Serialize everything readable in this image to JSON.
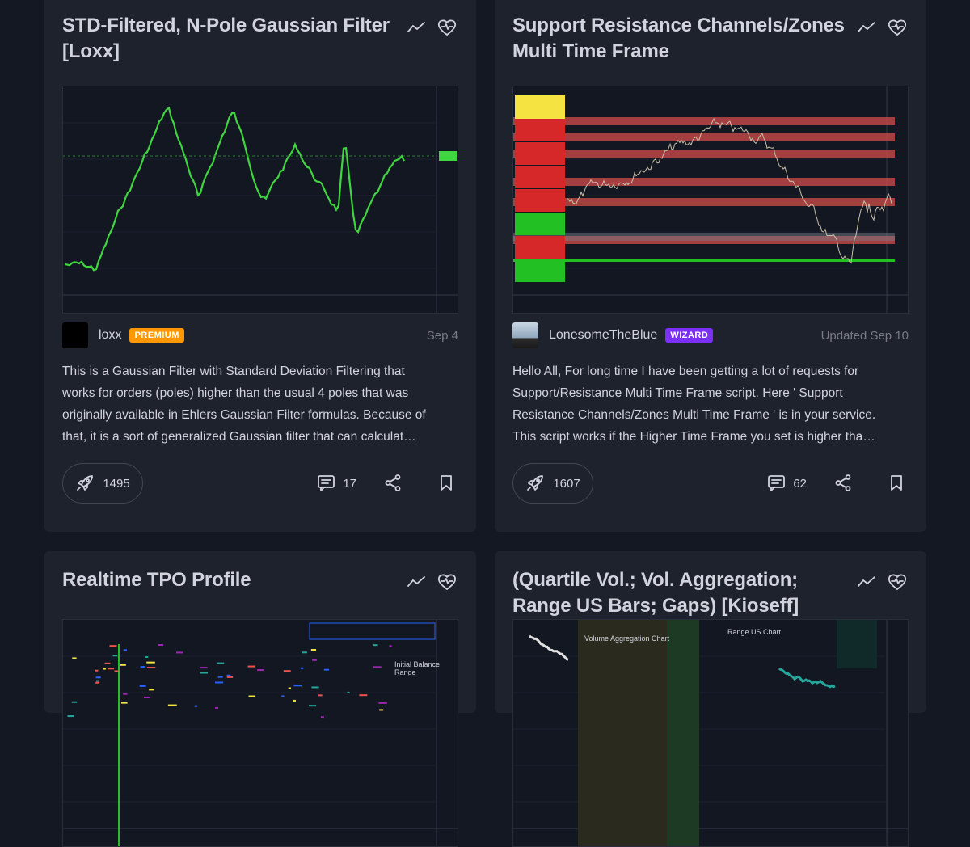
{
  "cards": [
    {
      "title": "STD-Filtered, N-Pole Gaussian Filter [Loxx]",
      "author": "loxx",
      "badge": "PREMIUM",
      "date": "Sep 4",
      "description": [
        "This is a Gaussian Filter with Standard Deviation Filtering that",
        "works for orders (poles) higher than the usual 4 poles that was",
        "originally available in Ehlers Gaussian Filter formulas. Because of",
        "that, it is a sort of generalized Gaussian filter that can calculat…"
      ],
      "boosts": 1495,
      "comments": 17
    },
    {
      "title": "Support Resistance Channels/Zones Multi Time Frame",
      "author": "LonesomeTheBlue",
      "badge": "WIZARD",
      "date": "Updated Sep 10",
      "description": [
        "Hello All, For long time I have been getting a lot of requests for",
        "Support/Resistance Multi Time Frame script. Here ' Support",
        "Resistance Channels/Zones Multi Time Frame ' is in your service.",
        "This script works if the Higher Time Frame you set is higher tha…"
      ],
      "boosts": 1607,
      "comments": 62
    },
    {
      "title": "Realtime TPO Profile",
      "thumbnail_labels": [
        "Initial Balance Range"
      ]
    },
    {
      "title": "(Quartile Vol.; Vol. Aggregation; Range US Bars; Gaps) [Kioseff]",
      "thumbnail_labels": [
        "Volume Aggregation Chart",
        "Range US Chart"
      ]
    }
  ]
}
